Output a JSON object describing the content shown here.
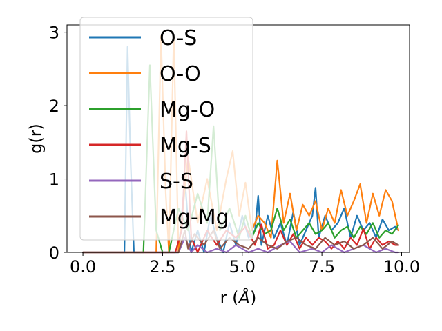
{
  "chart_data": {
    "type": "line",
    "xlabel_main": "r (",
    "xlabel_unit": "Å",
    "xlabel_close": ")",
    "ylabel": "g(r)",
    "xlim": [
      -0.5,
      10.25
    ],
    "ylim": [
      0,
      3.1
    ],
    "xticks": [
      {
        "value": 0.0,
        "label": "0.0"
      },
      {
        "value": 2.5,
        "label": "2.5"
      },
      {
        "value": 5.0,
        "label": "5.0"
      },
      {
        "value": 7.5,
        "label": "7.5"
      },
      {
        "value": 10.0,
        "label": "10.0"
      }
    ],
    "yticks": [
      {
        "value": 0,
        "label": "0"
      },
      {
        "value": 1,
        "label": "1"
      },
      {
        "value": 2,
        "label": "2"
      },
      {
        "value": 3,
        "label": "3"
      }
    ],
    "grid": false,
    "legend_position": "top-left",
    "series": [
      {
        "name": "O-S",
        "color": "#1f77b4",
        "x": [
          0.0,
          1.3,
          1.4,
          1.5,
          1.6,
          3.0,
          3.1,
          3.2,
          3.3,
          3.4,
          3.6,
          3.8,
          4.0,
          4.2,
          4.4,
          4.6,
          4.8,
          5.0,
          5.2,
          5.4,
          5.5,
          5.6,
          5.8,
          6.0,
          6.2,
          6.4,
          6.6,
          6.8,
          7.0,
          7.2,
          7.3,
          7.4,
          7.6,
          7.8,
          8.0,
          8.2,
          8.4,
          8.6,
          8.8,
          9.0,
          9.2,
          9.4,
          9.6,
          9.8,
          9.9
        ],
        "y": [
          0,
          0,
          2.8,
          1.2,
          0,
          0,
          0.5,
          1.0,
          0.4,
          0,
          0.3,
          0,
          0.5,
          0.2,
          0,
          0.4,
          0.1,
          0.5,
          0.2,
          0.3,
          0.77,
          0.1,
          0.5,
          0.2,
          0.4,
          0.1,
          0.55,
          0.1,
          0.3,
          0.5,
          0.88,
          0.2,
          0.5,
          0.3,
          0.4,
          0.6,
          0.2,
          0.5,
          0.3,
          0.4,
          0.2,
          0.45,
          0.3,
          0.35,
          0.3
        ]
      },
      {
        "name": "O-O",
        "color": "#ff7f0e",
        "x": [
          0.0,
          2.3,
          2.45,
          2.6,
          2.7,
          2.85,
          3.0,
          3.3,
          3.6,
          3.9,
          4.2,
          4.5,
          4.7,
          4.9,
          5.1,
          5.3,
          5.5,
          5.7,
          5.9,
          6.1,
          6.3,
          6.5,
          6.7,
          6.9,
          7.1,
          7.3,
          7.5,
          7.7,
          7.9,
          8.1,
          8.3,
          8.5,
          8.7,
          8.9,
          9.1,
          9.3,
          9.5,
          9.7,
          9.9
        ],
        "y": [
          0,
          0,
          2.95,
          0.8,
          0,
          2.95,
          0,
          1.3,
          0.4,
          1.0,
          0.3,
          1.0,
          1.38,
          0.5,
          0.95,
          0.3,
          0.5,
          0.4,
          0.2,
          1.25,
          0.4,
          0.8,
          0.3,
          0.65,
          0.5,
          0.7,
          0.3,
          0.6,
          0.4,
          0.85,
          0.5,
          0.7,
          0.93,
          0.4,
          0.8,
          0.5,
          0.85,
          0.7,
          0.3
        ]
      },
      {
        "name": "Mg-O",
        "color": "#2ca02c",
        "x": [
          0.0,
          1.9,
          2.1,
          2.3,
          2.5,
          2.7,
          3.0,
          3.3,
          3.6,
          3.9,
          4.1,
          4.3,
          4.6,
          4.9,
          5.1,
          5.3,
          5.5,
          5.7,
          5.9,
          6.1,
          6.3,
          6.5,
          6.7,
          6.9,
          7.1,
          7.3,
          7.5,
          7.7,
          7.9,
          8.1,
          8.3,
          8.5,
          8.7,
          8.9,
          9.1,
          9.3,
          9.5,
          9.7,
          9.9
        ],
        "y": [
          0,
          0,
          2.55,
          0.3,
          0,
          0,
          0.6,
          0.3,
          0.8,
          0.4,
          1.72,
          0.3,
          0.6,
          0.2,
          0.5,
          0.2,
          0.4,
          0.25,
          0.3,
          0.6,
          0.3,
          0.45,
          0.2,
          0.3,
          0.4,
          0.25,
          0.3,
          0.4,
          0.2,
          0.3,
          0.35,
          0.2,
          0.35,
          0.25,
          0.4,
          0.2,
          0.3,
          0.25,
          0.37
        ]
      },
      {
        "name": "Mg-S",
        "color": "#d62728",
        "x": [
          0.0,
          2.9,
          3.1,
          3.25,
          3.4,
          3.6,
          3.9,
          4.2,
          4.5,
          4.8,
          5.1,
          5.4,
          5.6,
          5.8,
          6.0,
          6.2,
          6.4,
          6.6,
          6.8,
          7.0,
          7.2,
          7.4,
          7.6,
          7.8,
          8.0,
          8.2,
          8.4,
          8.6,
          8.8,
          9.0,
          9.2,
          9.4,
          9.6,
          9.8,
          9.9
        ],
        "y": [
          0,
          0,
          0.3,
          1.65,
          0.2,
          0,
          0.3,
          0.1,
          0.3,
          0.2,
          0.35,
          0.1,
          0.38,
          0.05,
          0.1,
          0.3,
          0.1,
          0.25,
          0.05,
          0.2,
          0.1,
          0.2,
          0.15,
          0.05,
          0.15,
          0.05,
          0.2,
          0.1,
          0.32,
          0.05,
          0.2,
          0.1,
          0.15,
          0.1,
          0.1
        ]
      },
      {
        "name": "S-S",
        "color": "#9467bd",
        "x": [
          0.0,
          3.0,
          3.2,
          3.4,
          3.6,
          3.9,
          4.2,
          4.5,
          4.8,
          5.2,
          5.5,
          5.8,
          6.2,
          6.5,
          6.8,
          7.2,
          7.5,
          7.8,
          8.2,
          8.5,
          8.8,
          9.2,
          9.5,
          9.8,
          9.9
        ],
        "y": [
          0,
          0,
          0.2,
          0,
          0.1,
          0,
          0.05,
          0,
          0.1,
          0,
          0.05,
          0,
          0.1,
          0.15,
          0,
          0.05,
          0,
          0.1,
          0,
          0.05,
          0.1,
          0,
          0.05,
          0,
          0
        ]
      },
      {
        "name": "Mg-Mg",
        "color": "#8c564b",
        "x": [
          0.0,
          3.0,
          3.2,
          3.3,
          3.5,
          3.8,
          4.1,
          4.3,
          4.6,
          4.9,
          5.2,
          5.5,
          5.8,
          6.1,
          6.4,
          6.7,
          7.0,
          7.3,
          7.6,
          7.9,
          8.2,
          8.5,
          8.8,
          9.1,
          9.4,
          9.7,
          9.9
        ],
        "y": [
          0,
          0,
          0.3,
          0.05,
          0.25,
          0.1,
          0.3,
          0.05,
          0.2,
          0.1,
          0.05,
          0.2,
          0.1,
          0.05,
          0.15,
          0.2,
          0.1,
          0.05,
          0.2,
          0.1,
          0.15,
          0.05,
          0.1,
          0.2,
          0.05,
          0.15,
          0.1
        ]
      }
    ]
  }
}
